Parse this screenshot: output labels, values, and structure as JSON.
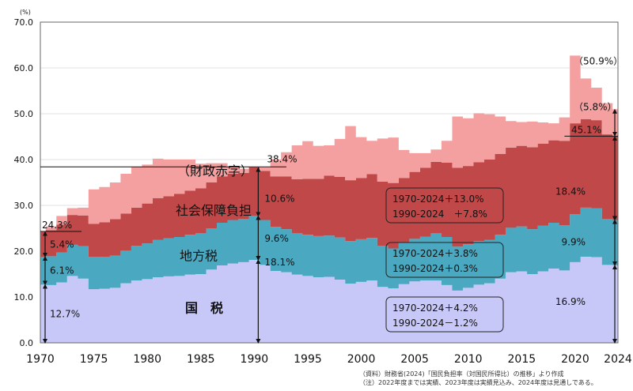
{
  "chart_data": {
    "type": "area",
    "stacked": true,
    "title": "",
    "unit_label": "(%)",
    "xlabel": "",
    "ylabel": "",
    "ylim": [
      0,
      70
    ],
    "yticks": [
      "0.0",
      "10.0",
      "20.0",
      "30.0",
      "40.0",
      "50.0",
      "60.0",
      "70.0"
    ],
    "xticks": [
      "1970",
      "1975",
      "1980",
      "1985",
      "1990",
      "1995",
      "2000",
      "2005",
      "2010",
      "2015",
      "2020",
      "2024"
    ],
    "grid": true,
    "x": [
      1970,
      1971,
      1972,
      1973,
      1974,
      1975,
      1976,
      1977,
      1978,
      1979,
      1980,
      1981,
      1982,
      1983,
      1984,
      1985,
      1986,
      1987,
      1988,
      1989,
      1990,
      1991,
      1992,
      1993,
      1994,
      1995,
      1996,
      1997,
      1998,
      1999,
      2000,
      2001,
      2002,
      2003,
      2004,
      2005,
      2006,
      2007,
      2008,
      2009,
      2010,
      2011,
      2012,
      2013,
      2014,
      2015,
      2016,
      2017,
      2018,
      2019,
      2020,
      2021,
      2022,
      2023,
      2024
    ],
    "series": [
      {
        "name": "国　税",
        "color": "#c8c8f8",
        "values": [
          12.7,
          12.6,
          13.2,
          14.6,
          14.0,
          11.7,
          11.8,
          12.0,
          13.0,
          13.6,
          13.9,
          14.3,
          14.5,
          14.6,
          14.9,
          15.0,
          16.0,
          16.9,
          17.3,
          17.6,
          18.1,
          17.0,
          15.7,
          15.4,
          14.9,
          14.6,
          14.3,
          14.4,
          13.8,
          12.9,
          13.3,
          13.6,
          12.2,
          11.9,
          12.8,
          13.4,
          13.6,
          13.6,
          12.6,
          11.4,
          12.0,
          12.7,
          13.0,
          14.0,
          15.4,
          15.6,
          15.0,
          15.6,
          16.2,
          15.8,
          17.6,
          18.8,
          18.7,
          17.0,
          16.9
        ]
      },
      {
        "name": "地方税",
        "color": "#4aa8c0",
        "values": [
          6.1,
          6.3,
          6.5,
          6.8,
          7.1,
          7.1,
          7.0,
          7.0,
          7.1,
          7.6,
          7.8,
          8.2,
          8.3,
          8.5,
          8.7,
          8.9,
          9.0,
          9.3,
          9.5,
          9.4,
          9.6,
          9.8,
          9.6,
          9.4,
          9.0,
          9.0,
          9.0,
          9.0,
          9.2,
          9.3,
          9.3,
          9.3,
          9.0,
          8.7,
          9.0,
          9.3,
          9.6,
          10.3,
          10.5,
          9.6,
          9.5,
          9.5,
          9.5,
          9.6,
          9.7,
          9.8,
          9.8,
          10.0,
          10.0,
          9.9,
          10.5,
          10.7,
          10.7,
          10.0,
          9.9
        ]
      },
      {
        "name": "社会保障負担",
        "color": "#c04848",
        "values": [
          5.4,
          5.7,
          6.1,
          6.5,
          6.7,
          7.2,
          7.5,
          8.0,
          8.1,
          8.3,
          8.7,
          9.1,
          9.2,
          9.4,
          9.6,
          9.8,
          10.0,
          10.1,
          10.1,
          10.1,
          10.6,
          10.7,
          11.0,
          11.5,
          11.8,
          12.2,
          12.5,
          13.1,
          13.2,
          13.3,
          13.4,
          13.9,
          14.0,
          14.3,
          14.2,
          14.6,
          15.0,
          15.6,
          16.2,
          17.2,
          17.1,
          17.2,
          17.5,
          17.6,
          17.5,
          17.6,
          17.9,
          17.9,
          18.0,
          18.4,
          19.8,
          19.3,
          19.2,
          18.5,
          18.4
        ]
      },
      {
        "name": "（財政赤字）",
        "color": "#f4a0a0",
        "values": [
          0.0,
          0.8,
          1.9,
          1.5,
          1.7,
          7.5,
          7.7,
          8.0,
          8.7,
          8.9,
          8.5,
          8.6,
          8.0,
          7.5,
          6.8,
          5.4,
          4.2,
          2.9,
          1.5,
          0.9,
          0.1,
          0.8,
          3.7,
          5.3,
          7.4,
          8.2,
          7.2,
          6.6,
          8.3,
          11.8,
          8.9,
          7.3,
          9.4,
          9.9,
          6.1,
          4.1,
          3.2,
          2.7,
          4.8,
          11.2,
          10.4,
          10.7,
          9.9,
          8.2,
          5.8,
          5.2,
          5.6,
          4.6,
          3.7,
          5.1,
          14.8,
          8.9,
          7.1,
          6.8,
          5.8
        ]
      }
    ],
    "labels": {
      "start_total": "24.3%",
      "total_1990": "38.4%",
      "deficit_2024": "（5.8%）",
      "total_2024": "（50.9%）",
      "burden_2024": "45.1%",
      "tax_1970": "12.7%",
      "local_1970": "6.1%",
      "social_1970": "5.4%",
      "tax_1990": "18.1%",
      "local_1990": "9.6%",
      "social_1990": "10.6%",
      "tax_2024": "16.9%",
      "local_2024": "9.9%",
      "social_2024": "18.4%",
      "series_label_deficit": "（財政赤字）",
      "series_label_social": "社会保障負担",
      "series_label_local": "地方税",
      "series_label_tax": "国　税"
    },
    "change_boxes": [
      {
        "line1": "1970-2024＋13.0%",
        "line2": "1990-2024　＋7.8%"
      },
      {
        "line1": "1970-2024＋3.8%",
        "line2": "1990-2024＋0.3%"
      },
      {
        "line1": "1970-2024＋4.2%",
        "line2": "1990-2024－1.2%"
      }
    ]
  },
  "source_note": {
    "line1": "（資料）財務省(2024)「国民負担率（対国民所得比）の推移」より作成",
    "line2": "（注）2022年度までは実績、2023年度は実績見込み、2024年度は見通しである。"
  }
}
